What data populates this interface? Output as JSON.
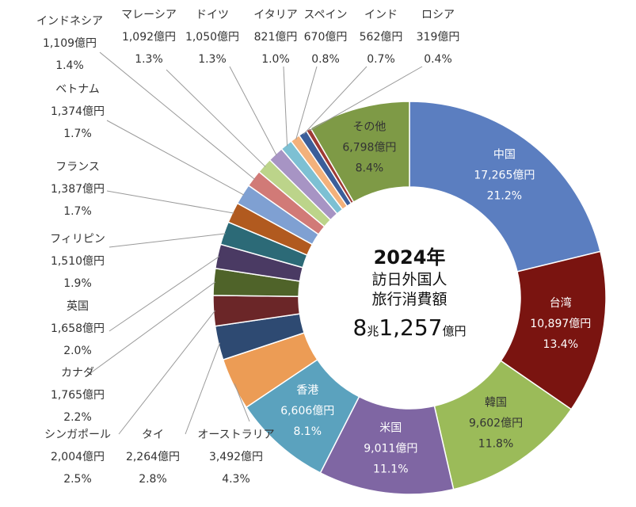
{
  "chart_data": {
    "type": "donut",
    "center": {
      "title": "2024年",
      "line1": "訪日外国人",
      "line2": "旅行消費額",
      "total_a": "8",
      "total_unit_a": "兆",
      "total_b": "1,257",
      "total_unit_b": "億円"
    },
    "slices": [
      {
        "name": "中国",
        "amount": "17,265億円",
        "share": "21.2%",
        "value": 21.2,
        "color": "#5b7ec0"
      },
      {
        "name": "台湾",
        "amount": "10,897億円",
        "share": "13.4%",
        "value": 13.4,
        "color": "#7a1410"
      },
      {
        "name": "韓国",
        "amount": "9,602億円",
        "share": "11.8%",
        "value": 11.8,
        "color": "#9bbb59"
      },
      {
        "name": "米国",
        "amount": "9,011億円",
        "share": "11.1%",
        "value": 11.1,
        "color": "#7f66a3"
      },
      {
        "name": "香港",
        "amount": "6,606億円",
        "share": "8.1%",
        "value": 8.1,
        "color": "#5ba2be"
      },
      {
        "name": "オーストラリア",
        "amount": "3,492億円",
        "share": "4.3%",
        "value": 4.3,
        "color": "#ec9c55"
      },
      {
        "name": "タイ",
        "amount": "2,264億円",
        "share": "2.8%",
        "value": 2.8,
        "color": "#2e4a72"
      },
      {
        "name": "シンガポール",
        "amount": "2,004億円",
        "share": "2.5%",
        "value": 2.5,
        "color": "#6b2628"
      },
      {
        "name": "カナダ",
        "amount": "1,765億円",
        "share": "2.2%",
        "value": 2.2,
        "color": "#4f6329"
      },
      {
        "name": "英国",
        "amount": "1,658億円",
        "share": "2.0%",
        "value": 2.0,
        "color": "#4a3a63"
      },
      {
        "name": "フィリピン",
        "amount": "1,510億円",
        "share": "1.9%",
        "value": 1.9,
        "color": "#2c6a77"
      },
      {
        "name": "フランス",
        "amount": "1,387億円",
        "share": "1.7%",
        "value": 1.7,
        "color": "#b15a1f"
      },
      {
        "name": "ベトナム",
        "amount": "1,374億円",
        "share": "1.7%",
        "value": 1.7,
        "color": "#7fa0d2"
      },
      {
        "name": "インドネシア",
        "amount": "1,109億円",
        "share": "1.4%",
        "value": 1.4,
        "color": "#d17a77"
      },
      {
        "name": "マレーシア",
        "amount": "1,092億円",
        "share": "1.3%",
        "value": 1.3,
        "color": "#bcd48a"
      },
      {
        "name": "ドイツ",
        "amount": "1,050億円",
        "share": "1.3%",
        "value": 1.3,
        "color": "#a794c4"
      },
      {
        "name": "イタリア",
        "amount": "821億円",
        "share": "1.0%",
        "value": 1.0,
        "color": "#7dc0d3"
      },
      {
        "name": "スペイン",
        "amount": "670億円",
        "share": "0.8%",
        "value": 0.8,
        "color": "#f3b17b"
      },
      {
        "name": "インド",
        "amount": "562億円",
        "share": "0.7%",
        "value": 0.7,
        "color": "#3b5e9a"
      },
      {
        "name": "ロシア",
        "amount": "319億円",
        "share": "0.4%",
        "value": 0.4,
        "color": "#9e3b35"
      },
      {
        "name": "その他",
        "amount": "6,798億円",
        "share": "8.4%",
        "value": 8.4,
        "color": "#7e9a46"
      }
    ]
  }
}
